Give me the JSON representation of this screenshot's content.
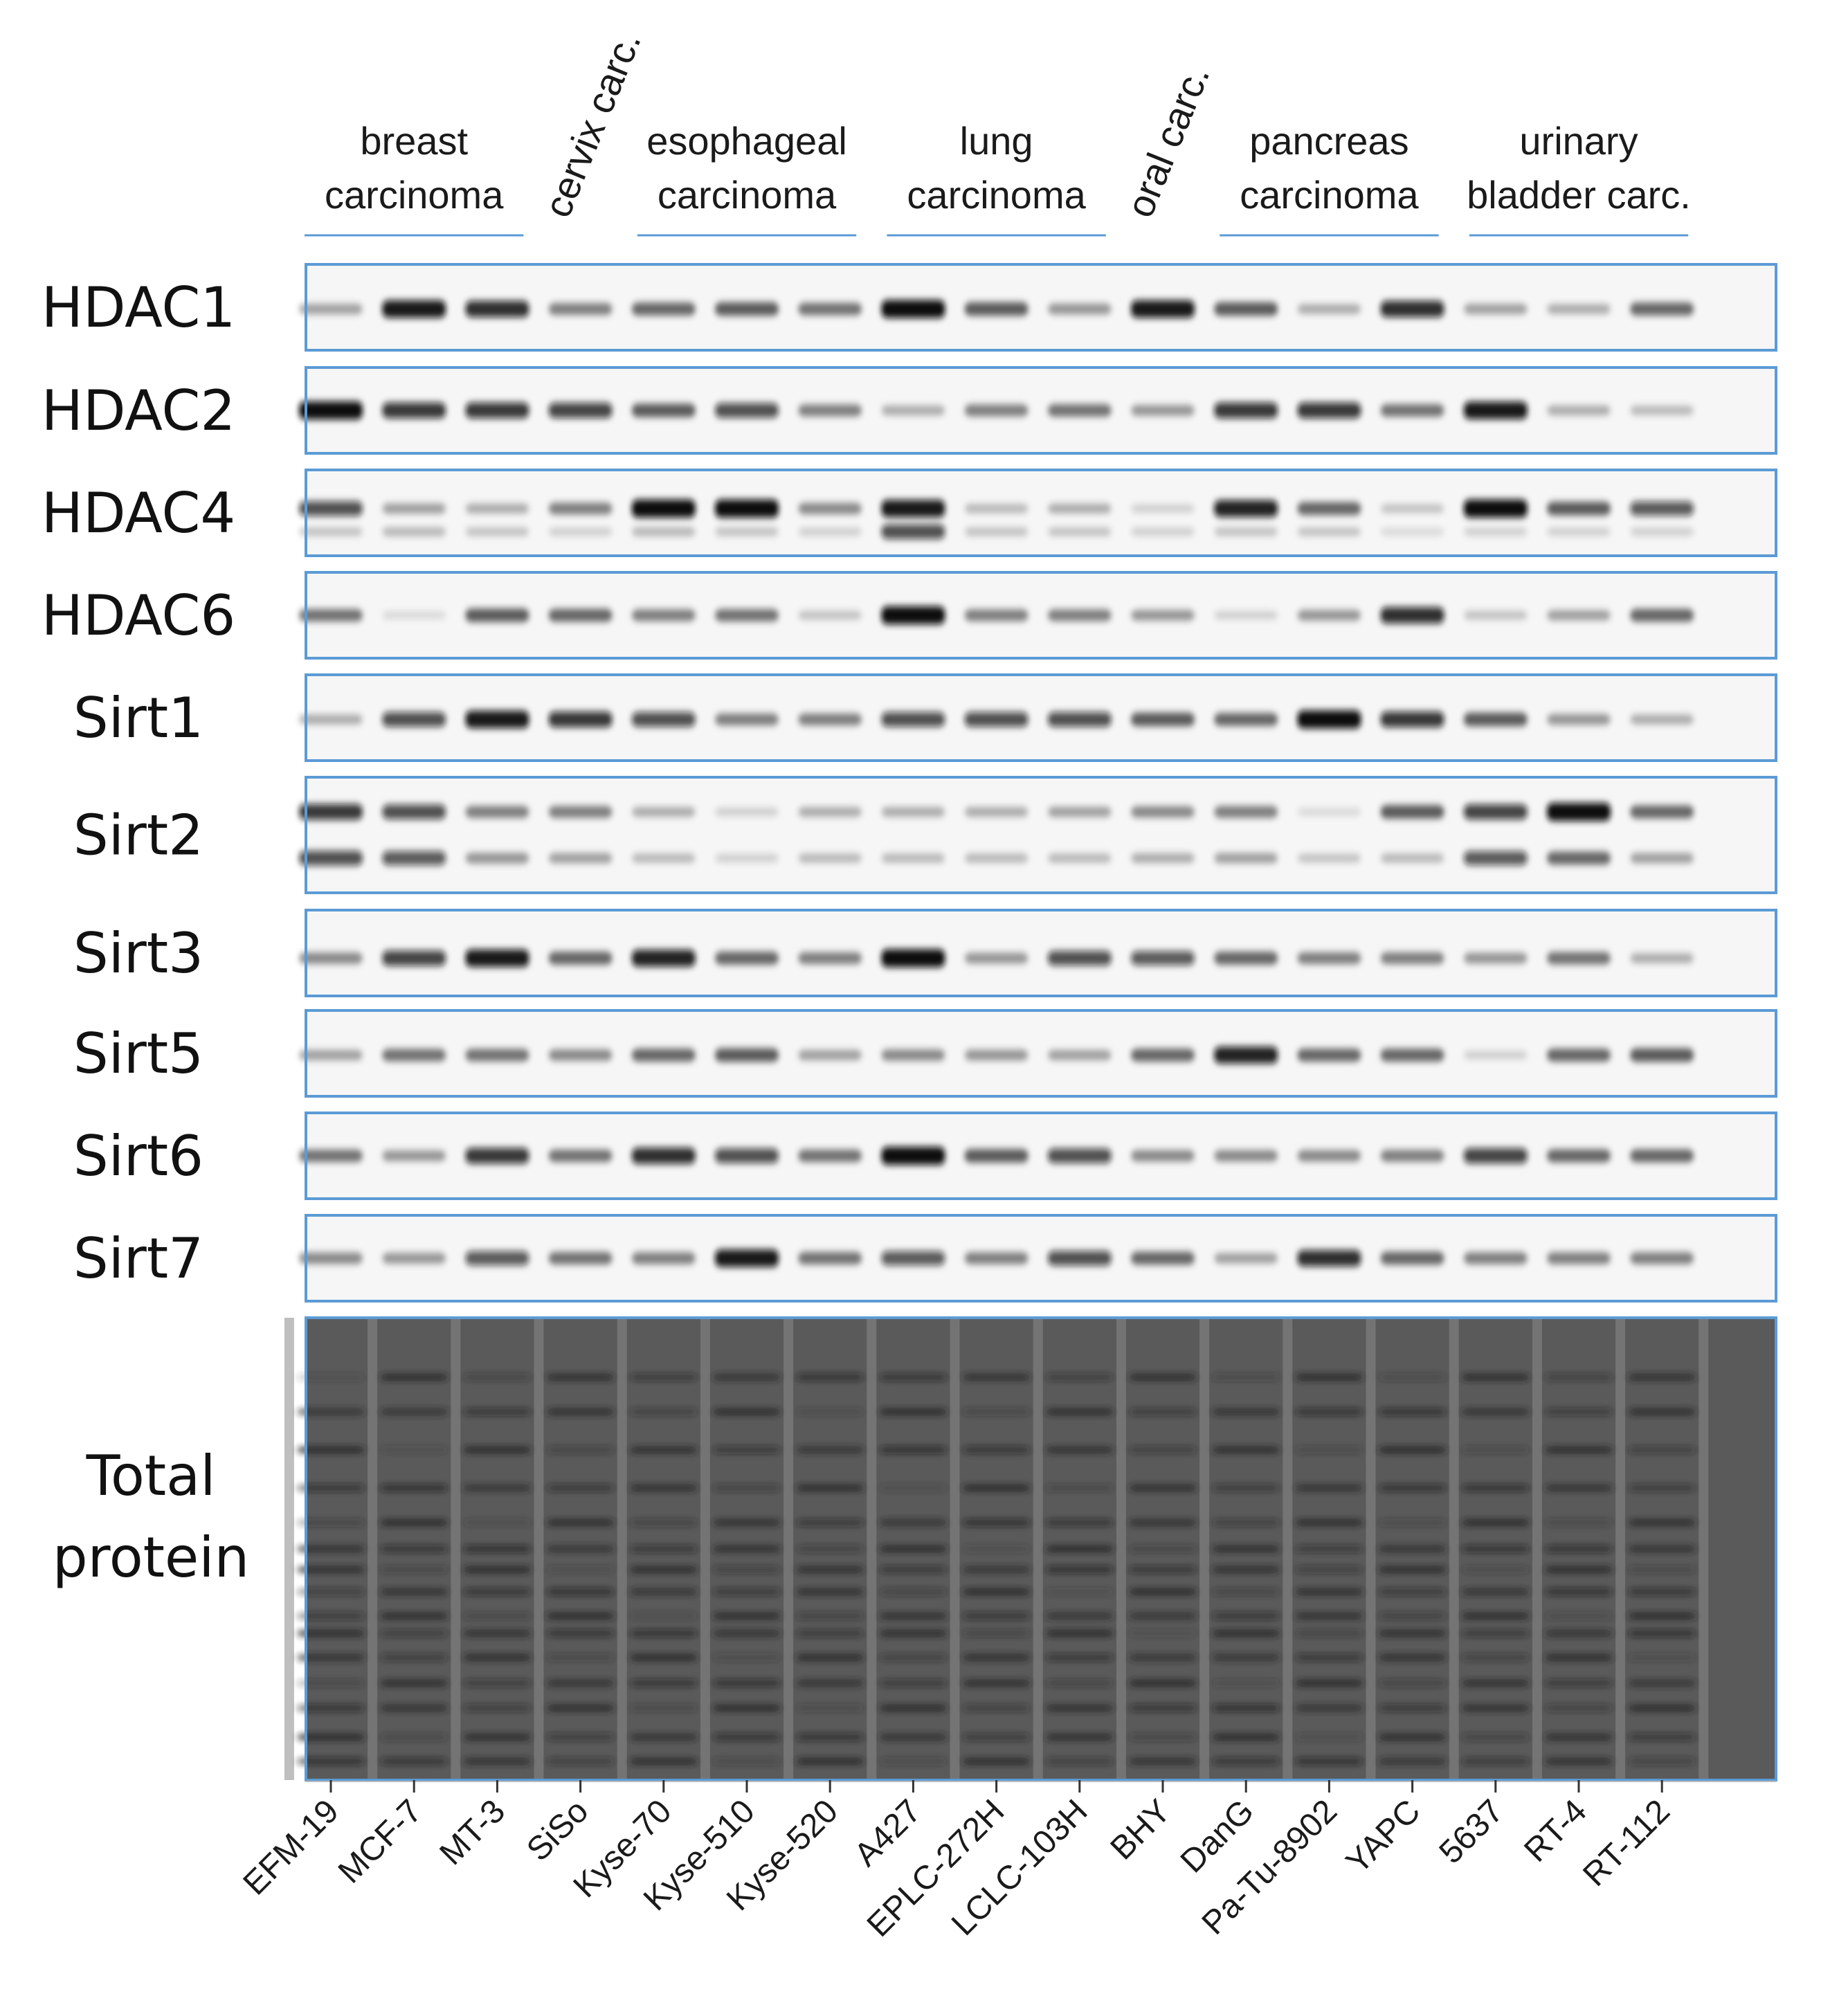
{
  "groups": [
    {
      "id": "breast",
      "lines": [
        "breast",
        "carcinoma"
      ],
      "lanes": [
        0,
        2
      ]
    },
    {
      "id": "cervix",
      "lines": [
        "cervix carc."
      ],
      "lanes": [
        3,
        3
      ]
    },
    {
      "id": "esophageal",
      "lines": [
        "esophageal",
        "carcinoma"
      ],
      "lanes": [
        4,
        6
      ]
    },
    {
      "id": "lung",
      "lines": [
        "lung",
        "carcinoma"
      ],
      "lanes": [
        7,
        9
      ]
    },
    {
      "id": "oral",
      "lines": [
        "oral carc."
      ],
      "lanes": [
        10,
        10
      ]
    },
    {
      "id": "pancreas",
      "lines": [
        "pancreas",
        "carcinoma"
      ],
      "lanes": [
        11,
        13
      ]
    },
    {
      "id": "urinary",
      "lines": [
        "urinary",
        "bladder carc."
      ],
      "lanes": [
        14,
        16
      ]
    }
  ],
  "lanes": [
    "EFM-19",
    "MCF-7",
    "MT-3",
    "SiSo",
    "Kyse-70",
    "Kyse-510",
    "Kyse-520",
    "A427",
    "EPLC-272H",
    "LCLC-103H",
    "BHY",
    "DanG",
    "Pa-Tu-8902",
    "YAPC",
    "5637",
    "RT-4",
    "RT-112"
  ],
  "rows": [
    {
      "label": "HDAC1",
      "bands": [
        {
          "i": [
            0.3,
            0.95,
            0.85,
            0.45,
            0.55,
            0.6,
            0.5,
            1.0,
            0.6,
            0.35,
            0.95,
            0.6,
            0.25,
            0.85,
            0.3,
            0.25,
            0.55
          ]
        }
      ]
    },
    {
      "label": "HDAC2",
      "bands": [
        {
          "i": [
            1.0,
            0.8,
            0.8,
            0.75,
            0.6,
            0.7,
            0.45,
            0.25,
            0.45,
            0.5,
            0.35,
            0.8,
            0.8,
            0.5,
            0.95,
            0.25,
            0.2
          ]
        }
      ]
    },
    {
      "label": "HDAC4",
      "bands": [
        {
          "i": [
            0.7,
            0.3,
            0.25,
            0.45,
            1.0,
            1.0,
            0.4,
            0.95,
            0.2,
            0.25,
            0.1,
            0.9,
            0.55,
            0.15,
            1.0,
            0.6,
            0.65
          ]
        },
        {
          "i": [
            0.15,
            0.2,
            0.15,
            0.1,
            0.2,
            0.15,
            0.1,
            0.7,
            0.15,
            0.15,
            0.1,
            0.15,
            0.15,
            0.05,
            0.1,
            0.1,
            0.1
          ]
        }
      ]
    },
    {
      "label": "HDAC6",
      "bands": [
        {
          "i": [
            0.5,
            0.05,
            0.6,
            0.55,
            0.45,
            0.5,
            0.15,
            1.0,
            0.45,
            0.45,
            0.35,
            0.1,
            0.35,
            0.85,
            0.15,
            0.3,
            0.55
          ]
        }
      ]
    },
    {
      "label": "Sirt1",
      "bands": [
        {
          "i": [
            0.25,
            0.7,
            0.95,
            0.8,
            0.7,
            0.45,
            0.45,
            0.7,
            0.7,
            0.7,
            0.6,
            0.55,
            1.0,
            0.8,
            0.6,
            0.35,
            0.25
          ]
        }
      ]
    },
    {
      "label": "Sirt2",
      "bands": [
        {
          "i": [
            0.8,
            0.7,
            0.45,
            0.45,
            0.25,
            0.1,
            0.25,
            0.25,
            0.25,
            0.3,
            0.4,
            0.45,
            0.05,
            0.6,
            0.75,
            1.0,
            0.55
          ]
        },
        {
          "i": [
            0.7,
            0.65,
            0.35,
            0.3,
            0.2,
            0.1,
            0.2,
            0.2,
            0.2,
            0.2,
            0.25,
            0.3,
            0.15,
            0.2,
            0.65,
            0.55,
            0.3
          ]
        }
      ]
    },
    {
      "label": "Sirt3",
      "bands": [
        {
          "i": [
            0.4,
            0.75,
            0.95,
            0.55,
            0.9,
            0.55,
            0.45,
            1.0,
            0.35,
            0.7,
            0.65,
            0.55,
            0.45,
            0.45,
            0.35,
            0.5,
            0.25
          ]
        }
      ]
    },
    {
      "label": "Sirt5",
      "bands": [
        {
          "i": [
            0.3,
            0.5,
            0.5,
            0.4,
            0.55,
            0.6,
            0.3,
            0.4,
            0.35,
            0.3,
            0.55,
            0.9,
            0.55,
            0.55,
            0.1,
            0.55,
            0.6
          ]
        }
      ]
    },
    {
      "label": "Sirt6",
      "bands": [
        {
          "i": [
            0.5,
            0.35,
            0.8,
            0.5,
            0.85,
            0.7,
            0.5,
            1.0,
            0.6,
            0.7,
            0.4,
            0.4,
            0.4,
            0.45,
            0.75,
            0.55,
            0.55
          ]
        }
      ]
    },
    {
      "label": "Sirt7",
      "bands": [
        {
          "i": [
            0.4,
            0.35,
            0.65,
            0.5,
            0.45,
            0.95,
            0.5,
            0.65,
            0.45,
            0.7,
            0.55,
            0.3,
            0.85,
            0.55,
            0.45,
            0.45,
            0.45
          ]
        }
      ]
    }
  ],
  "total": {
    "lines": [
      "Total",
      "protein"
    ]
  },
  "colors": {
    "frame": "#5b9bd5",
    "band": "#0a0a0a",
    "membrane": "#f6f6f6",
    "total_bg": "#5a5a5a"
  }
}
